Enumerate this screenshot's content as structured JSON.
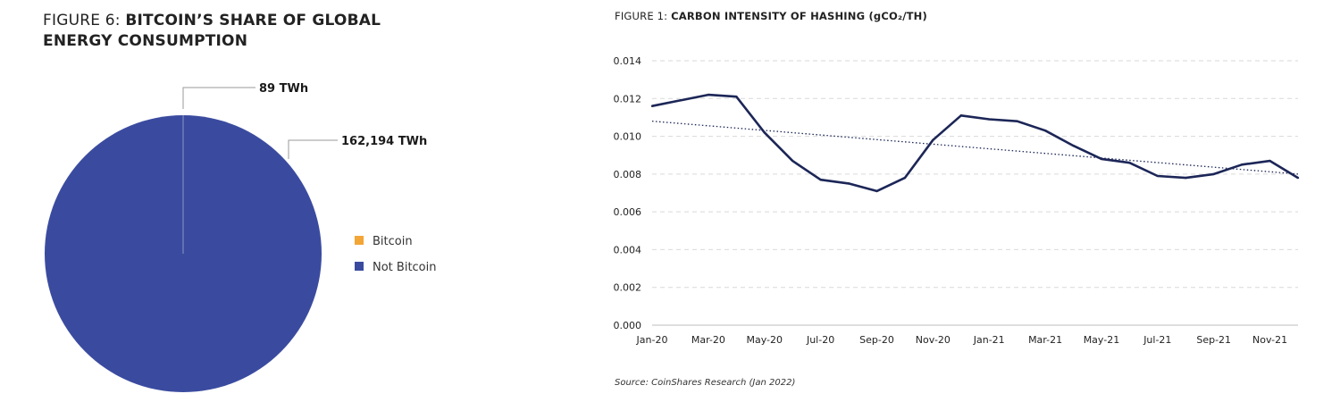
{
  "figure6": {
    "prefix": "FIGURE 6:",
    "title": "BITCOIN’S SHARE OF GLOBAL ENERGY CONSUMPTION"
  },
  "figure1": {
    "prefix": "FIGURE 1:",
    "title": "CARBON INTENSITY OF HASHING (gCO₂/TH)",
    "source": "Source: CoinShares Research (Jan 2022)"
  },
  "colors": {
    "bitcoin": "#f3a535",
    "not_bitcoin": "#3a4b9f",
    "line": "#1c2657",
    "grid": "#d9d9d9",
    "leader": "#9a9a9a"
  },
  "chart_data": [
    {
      "type": "pie",
      "title": "BITCOIN’S SHARE OF GLOBAL ENERGY CONSUMPTION",
      "slices": [
        {
          "name": "Bitcoin",
          "value": 89,
          "label": "89 TWh"
        },
        {
          "name": "Not Bitcoin",
          "value": 162194,
          "label": "162,194 TWh"
        }
      ],
      "legend": [
        "Bitcoin",
        "Not Bitcoin"
      ],
      "legend_position": "right"
    },
    {
      "type": "line",
      "title": "CARBON INTENSITY OF HASHING (gCO₂/TH)",
      "x": [
        "Jan-20",
        "Feb-20",
        "Mar-20",
        "Apr-20",
        "May-20",
        "Jun-20",
        "Jul-20",
        "Aug-20",
        "Sep-20",
        "Oct-20",
        "Nov-20",
        "Dec-20",
        "Jan-21",
        "Feb-21",
        "Mar-21",
        "Apr-21",
        "May-21",
        "Jun-21",
        "Jul-21",
        "Aug-21",
        "Sep-21",
        "Oct-21",
        "Nov-21",
        "Dec-21"
      ],
      "x_tick_labels": [
        "Jan-20",
        "Mar-20",
        "May-20",
        "Jul-20",
        "Sep-20",
        "Nov-20",
        "Jan-21",
        "Mar-21",
        "May-21",
        "Jul-21",
        "Sep-21",
        "Nov-21"
      ],
      "series": [
        {
          "name": "Carbon intensity",
          "values": [
            0.0116,
            0.0119,
            0.0122,
            0.0121,
            0.0102,
            0.0087,
            0.0077,
            0.0075,
            0.0071,
            0.0078,
            0.0098,
            0.0111,
            0.0109,
            0.0108,
            0.0103,
            0.0095,
            0.0088,
            0.0086,
            0.0079,
            0.0078,
            0.008,
            0.0085,
            0.0087,
            0.0078
          ]
        }
      ],
      "trendline": {
        "style": "dotted",
        "start": 0.0108,
        "end": 0.008
      },
      "y_ticks": [
        "0.000",
        "0.002",
        "0.004",
        "0.006",
        "0.008",
        "0.010",
        "0.012",
        "0.014"
      ],
      "ylim": [
        0,
        0.014
      ],
      "grid": true,
      "xlabel": "",
      "ylabel": ""
    }
  ]
}
